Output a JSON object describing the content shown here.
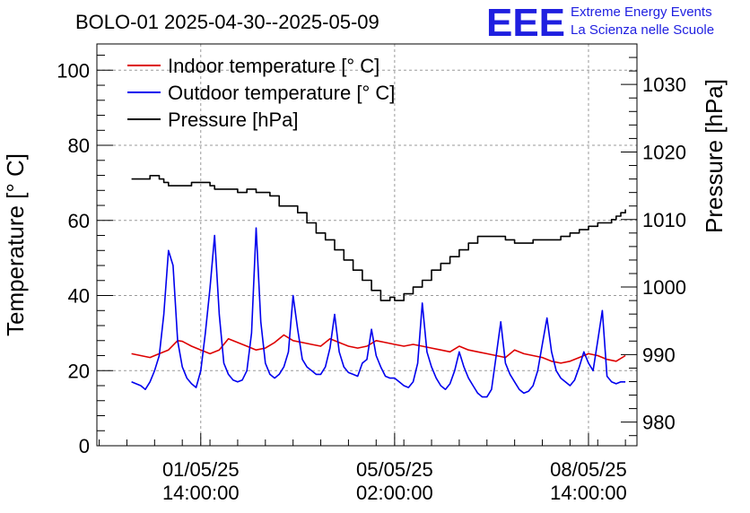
{
  "header": {
    "title": "BOLO-01 2025-04-30--2025-05-09",
    "logo_text": "EEE",
    "logo_line1": "Extreme Energy Events",
    "logo_line2": "La Scienza nelle Scuole"
  },
  "colors": {
    "indoor": "#dd0000",
    "outdoor": "#0000ee",
    "pressure": "#000000",
    "logo": "#1f1fe0",
    "grid": "#999999"
  },
  "chart_data": {
    "type": "line",
    "ylabel": "Temperature [° C]",
    "y2label": "Pressure [hPa]",
    "ylim": [
      0,
      107
    ],
    "y2lim": [
      976.5,
      1036
    ],
    "grid": true,
    "legend_position": "top-left",
    "y_ticks": [
      "0",
      "20",
      "40",
      "60",
      "80",
      "100"
    ],
    "y2_ticks": [
      "980",
      "990",
      "1000",
      "1010",
      "1020",
      "1030"
    ],
    "x_ticks": [
      {
        "date": "01/05/25",
        "time": "14:00:00"
      },
      {
        "date": "05/05/25",
        "time": "02:00:00"
      },
      {
        "date": "08/05/25",
        "time": "14:00:00"
      }
    ],
    "x_tick_hours": [
      38,
      122,
      206
    ],
    "x_range_hours": [
      -7,
      227
    ],
    "x_unit": "hours since 2025-04-30 00:00",
    "series": [
      {
        "name": "Indoor temperature [° C]",
        "axis": "left",
        "x": [
          8,
          12,
          16,
          20,
          24,
          28,
          30,
          34,
          38,
          42,
          46,
          50,
          54,
          58,
          62,
          66,
          70,
          74,
          78,
          82,
          86,
          90,
          94,
          98,
          102,
          106,
          110,
          114,
          118,
          122,
          126,
          130,
          134,
          138,
          142,
          146,
          150,
          154,
          158,
          162,
          166,
          170,
          174,
          178,
          182,
          186,
          190,
          194,
          198,
          202,
          206,
          210,
          214,
          218,
          222
        ],
        "y": [
          24.5,
          24,
          23.5,
          24.5,
          25.5,
          28,
          27.8,
          26.5,
          25.5,
          24.5,
          25.5,
          28.5,
          27.5,
          26.5,
          25.5,
          26,
          27.5,
          29.5,
          28,
          27.5,
          27,
          26.5,
          28.5,
          27.5,
          26.5,
          26,
          26.5,
          28,
          27.5,
          27,
          26.5,
          27,
          26.5,
          26,
          25.5,
          25,
          26.5,
          25.5,
          25,
          24.5,
          24,
          23.5,
          25.5,
          24.5,
          24,
          23.5,
          22.5,
          22,
          22.5,
          23.5,
          24.5,
          24,
          23,
          22.5,
          24
        ]
      },
      {
        "name": "Outdoor temperature [° C]",
        "axis": "left",
        "x": [
          8,
          10,
          12,
          14,
          16,
          18,
          20,
          22,
          24,
          26,
          28,
          30,
          32,
          34,
          36,
          38,
          40,
          42,
          44,
          46,
          48,
          50,
          52,
          54,
          56,
          58,
          60,
          62,
          64,
          66,
          68,
          70,
          72,
          74,
          76,
          78,
          80,
          82,
          84,
          86,
          88,
          90,
          92,
          94,
          96,
          98,
          100,
          102,
          104,
          106,
          108,
          110,
          112,
          114,
          116,
          118,
          120,
          122,
          124,
          126,
          128,
          130,
          132,
          134,
          136,
          138,
          140,
          142,
          144,
          146,
          148,
          150,
          152,
          154,
          156,
          158,
          160,
          162,
          164,
          166,
          168,
          170,
          172,
          174,
          176,
          178,
          180,
          182,
          184,
          186,
          188,
          190,
          192,
          194,
          196,
          198,
          200,
          202,
          204,
          206,
          208,
          210,
          212,
          214,
          216,
          218,
          220,
          222
        ],
        "y": [
          17,
          16.5,
          16,
          15,
          17,
          20,
          24,
          35,
          52,
          48,
          28,
          21,
          18,
          16.5,
          15.5,
          20,
          30,
          42,
          56,
          35,
          22,
          19,
          17.5,
          17,
          17.5,
          20,
          30,
          58,
          33,
          22,
          19,
          18,
          19,
          21,
          25,
          40,
          31,
          23,
          21,
          20,
          19,
          19,
          21,
          26,
          35,
          25,
          21,
          19.5,
          19,
          18.5,
          22,
          23,
          31,
          24,
          21,
          18.5,
          18,
          18,
          17,
          16,
          15.5,
          17,
          22,
          38,
          25,
          21,
          18,
          16,
          15,
          16.5,
          20,
          25,
          21,
          18,
          16,
          14,
          13,
          13,
          15,
          24,
          33,
          22,
          19,
          17,
          15,
          14,
          14.5,
          16,
          20,
          27,
          34,
          25,
          20,
          18,
          17,
          16,
          17.5,
          21,
          25,
          22,
          20,
          28,
          36,
          18.5,
          17,
          16.5,
          17,
          17
        ]
      },
      {
        "name": "Pressure [hPa]",
        "axis": "right",
        "x": [
          8,
          12,
          16,
          18,
          20,
          22,
          24,
          26,
          30,
          34,
          38,
          42,
          44,
          46,
          50,
          54,
          58,
          62,
          66,
          68,
          72,
          76,
          80,
          84,
          88,
          92,
          96,
          100,
          104,
          108,
          112,
          116,
          118,
          120,
          122,
          126,
          130,
          134,
          138,
          142,
          146,
          150,
          154,
          158,
          162,
          166,
          170,
          174,
          178,
          182,
          186,
          190,
          194,
          198,
          202,
          206,
          210,
          214,
          216,
          218,
          220,
          222
        ],
        "y": [
          1016,
          1016,
          1016.5,
          1016.5,
          1016,
          1015.5,
          1015,
          1015,
          1015,
          1015.5,
          1015.5,
          1015,
          1014.5,
          1014.5,
          1014.5,
          1014,
          1014.5,
          1014,
          1014,
          1013.5,
          1012,
          1012,
          1011,
          1009.5,
          1008,
          1007,
          1005.5,
          1004,
          1002.5,
          1001,
          999.5,
          998,
          998,
          998.5,
          998,
          999,
          1000,
          1001,
          1002.5,
          1003.5,
          1004.5,
          1005.5,
          1006.5,
          1007.5,
          1007.5,
          1007.5,
          1007,
          1006.5,
          1006.5,
          1007,
          1007,
          1007,
          1007.5,
          1008,
          1008.5,
          1009,
          1009.5,
          1009.5,
          1010,
          1010.5,
          1011,
          1011.5
        ]
      }
    ]
  }
}
